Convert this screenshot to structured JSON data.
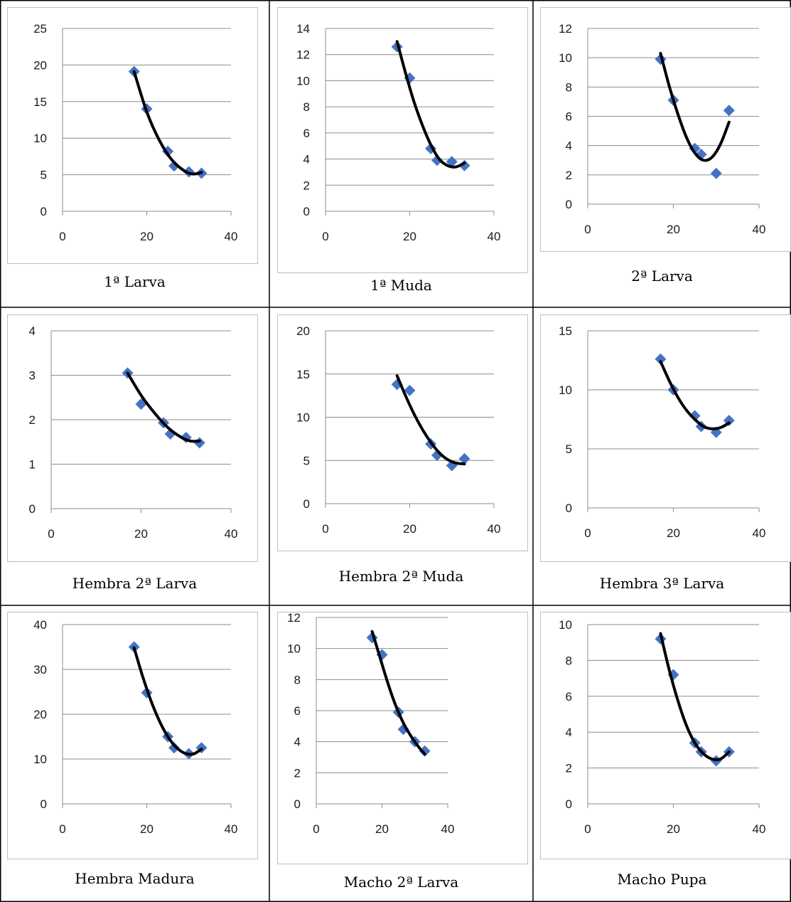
{
  "chart_data": [
    {
      "type": "scatter",
      "caption": "1ª Larva",
      "points": [
        [
          17,
          19.1
        ],
        [
          20,
          14.0
        ],
        [
          25,
          8.2
        ],
        [
          26.5,
          6.2
        ],
        [
          30,
          5.4
        ],
        [
          33,
          5.2
        ]
      ],
      "trend": [
        [
          17,
          19.1
        ],
        [
          20,
          13.6
        ],
        [
          23,
          9.7
        ],
        [
          26,
          7.0
        ],
        [
          29,
          5.5
        ],
        [
          31,
          5.1
        ],
        [
          33,
          5.3
        ]
      ],
      "xlim": [
        0,
        40
      ],
      "xticks": [
        0,
        20,
        40
      ],
      "ylim": [
        0,
        25
      ],
      "yticks": [
        0,
        5,
        10,
        15,
        20,
        25
      ]
    },
    {
      "type": "scatter",
      "caption": "1ª Muda",
      "points": [
        [
          17,
          12.6
        ],
        [
          20,
          10.2
        ],
        [
          25,
          4.8
        ],
        [
          26.5,
          3.9
        ],
        [
          30,
          3.8
        ],
        [
          33,
          3.5
        ]
      ],
      "trend": [
        [
          17,
          13.0
        ],
        [
          19,
          10.6
        ],
        [
          21,
          8.4
        ],
        [
          23,
          6.6
        ],
        [
          25,
          5.1
        ],
        [
          27,
          4.0
        ],
        [
          29,
          3.5
        ],
        [
          31,
          3.4
        ],
        [
          33,
          3.7
        ]
      ],
      "xlim": [
        0,
        40
      ],
      "xticks": [
        0,
        20,
        40
      ],
      "ylim": [
        0,
        14
      ],
      "yticks": [
        0,
        2,
        4,
        6,
        8,
        10,
        12,
        14
      ]
    },
    {
      "type": "scatter",
      "caption": "2ª Larva",
      "points": [
        [
          17,
          9.9
        ],
        [
          20,
          7.1
        ],
        [
          25,
          3.8
        ],
        [
          26.5,
          3.4
        ],
        [
          30,
          2.1
        ],
        [
          33,
          6.4
        ]
      ],
      "trend": [
        [
          17,
          10.3
        ],
        [
          19,
          8.1
        ],
        [
          21,
          6.2
        ],
        [
          23,
          4.6
        ],
        [
          25,
          3.5
        ],
        [
          27,
          3.0
        ],
        [
          29,
          3.2
        ],
        [
          31,
          4.1
        ],
        [
          33,
          5.6
        ]
      ],
      "xlim": [
        0,
        40
      ],
      "xticks": [
        0,
        20,
        40
      ],
      "ylim": [
        0,
        12
      ],
      "yticks": [
        0,
        2,
        4,
        6,
        8,
        10,
        12
      ]
    },
    {
      "type": "scatter",
      "caption": "Hembra 2ª Larva",
      "points": [
        [
          17,
          3.05
        ],
        [
          20,
          2.35
        ],
        [
          25,
          1.93
        ],
        [
          26.5,
          1.68
        ],
        [
          30,
          1.6
        ],
        [
          33,
          1.48
        ]
      ],
      "trend": [
        [
          17,
          3.05
        ],
        [
          20,
          2.55
        ],
        [
          23,
          2.15
        ],
        [
          26,
          1.82
        ],
        [
          29,
          1.6
        ],
        [
          31,
          1.52
        ],
        [
          33,
          1.52
        ]
      ],
      "xlim": [
        0,
        40
      ],
      "xticks": [
        0,
        20,
        40
      ],
      "ylim": [
        0,
        4
      ],
      "yticks": [
        0,
        1,
        2,
        3,
        4
      ]
    },
    {
      "type": "scatter",
      "caption": "Hembra 2ª Muda",
      "points": [
        [
          17,
          13.8
        ],
        [
          20,
          13.1
        ],
        [
          25,
          6.9
        ],
        [
          26.5,
          5.6
        ],
        [
          30,
          4.4
        ],
        [
          33,
          5.2
        ]
      ],
      "trend": [
        [
          17,
          14.8
        ],
        [
          19,
          12.5
        ],
        [
          21,
          10.4
        ],
        [
          23,
          8.6
        ],
        [
          25,
          7.1
        ],
        [
          27,
          5.9
        ],
        [
          29,
          5.1
        ],
        [
          31,
          4.7
        ],
        [
          33,
          4.6
        ]
      ],
      "xlim": [
        0,
        40
      ],
      "xticks": [
        0,
        20,
        40
      ],
      "ylim": [
        0,
        20
      ],
      "yticks": [
        0,
        5,
        10,
        15,
        20
      ]
    },
    {
      "type": "scatter",
      "caption": "Hembra 3ª Larva",
      "points": [
        [
          17,
          12.6
        ],
        [
          20,
          10.0
        ],
        [
          25,
          7.8
        ],
        [
          26.5,
          6.9
        ],
        [
          30,
          6.4
        ],
        [
          33,
          7.4
        ]
      ],
      "trend": [
        [
          17,
          12.4
        ],
        [
          19,
          10.8
        ],
        [
          21,
          9.4
        ],
        [
          23,
          8.3
        ],
        [
          25,
          7.5
        ],
        [
          27,
          6.9
        ],
        [
          29,
          6.7
        ],
        [
          31,
          6.8
        ],
        [
          33,
          7.2
        ]
      ],
      "xlim": [
        0,
        40
      ],
      "xticks": [
        0,
        20,
        40
      ],
      "ylim": [
        0,
        15
      ],
      "yticks": [
        0,
        5,
        10,
        15
      ]
    },
    {
      "type": "scatter",
      "caption": "Hembra Madura",
      "points": [
        [
          17,
          35.0
        ],
        [
          20,
          24.8
        ],
        [
          25,
          15.0
        ],
        [
          26.5,
          12.5
        ],
        [
          30,
          11.2
        ],
        [
          33,
          12.5
        ]
      ],
      "trend": [
        [
          17,
          34.8
        ],
        [
          19,
          28.5
        ],
        [
          21,
          23.0
        ],
        [
          23,
          18.5
        ],
        [
          25,
          15.0
        ],
        [
          27,
          12.6
        ],
        [
          29,
          11.3
        ],
        [
          31,
          11.1
        ],
        [
          33,
          12.2
        ]
      ],
      "xlim": [
        0,
        40
      ],
      "xticks": [
        0,
        20,
        40
      ],
      "ylim": [
        0,
        40
      ],
      "yticks": [
        0,
        10,
        20,
        30,
        40
      ]
    },
    {
      "type": "scatter",
      "caption": "Macho 2ª Larva",
      "points": [
        [
          17,
          10.7
        ],
        [
          20,
          9.6
        ],
        [
          25,
          5.9
        ],
        [
          26.5,
          4.8
        ],
        [
          30,
          4.0
        ],
        [
          33,
          3.4
        ]
      ],
      "trend": [
        [
          17,
          11.1
        ],
        [
          19,
          9.7
        ],
        [
          21,
          8.3
        ],
        [
          23,
          7.0
        ],
        [
          25,
          5.9
        ],
        [
          27,
          5.0
        ],
        [
          29,
          4.3
        ],
        [
          31,
          3.7
        ],
        [
          33,
          3.2
        ]
      ],
      "xlim": [
        0,
        40
      ],
      "xticks": [
        0,
        20,
        40
      ],
      "ylim": [
        0,
        12
      ],
      "yticks": [
        0,
        2,
        4,
        6,
        8,
        10,
        12
      ]
    },
    {
      "type": "scatter",
      "caption": "Macho Pupa",
      "points": [
        [
          17,
          9.2
        ],
        [
          20,
          7.2
        ],
        [
          25,
          3.4
        ],
        [
          26.5,
          2.9
        ],
        [
          30,
          2.4
        ],
        [
          33,
          2.9
        ]
      ],
      "trend": [
        [
          17,
          9.5
        ],
        [
          19,
          7.5
        ],
        [
          21,
          5.8
        ],
        [
          23,
          4.4
        ],
        [
          25,
          3.4
        ],
        [
          27,
          2.8
        ],
        [
          29,
          2.5
        ],
        [
          31,
          2.5
        ],
        [
          33,
          2.9
        ]
      ],
      "xlim": [
        0,
        40
      ],
      "xticks": [
        0,
        20,
        40
      ],
      "ylim": [
        0,
        10
      ],
      "yticks": [
        0,
        2,
        4,
        6,
        8,
        10
      ]
    }
  ],
  "colors": {
    "marker": "#4472C4",
    "trend": "#000000",
    "gridline": "#8c8c8c",
    "frame": "#bfbfbf"
  }
}
